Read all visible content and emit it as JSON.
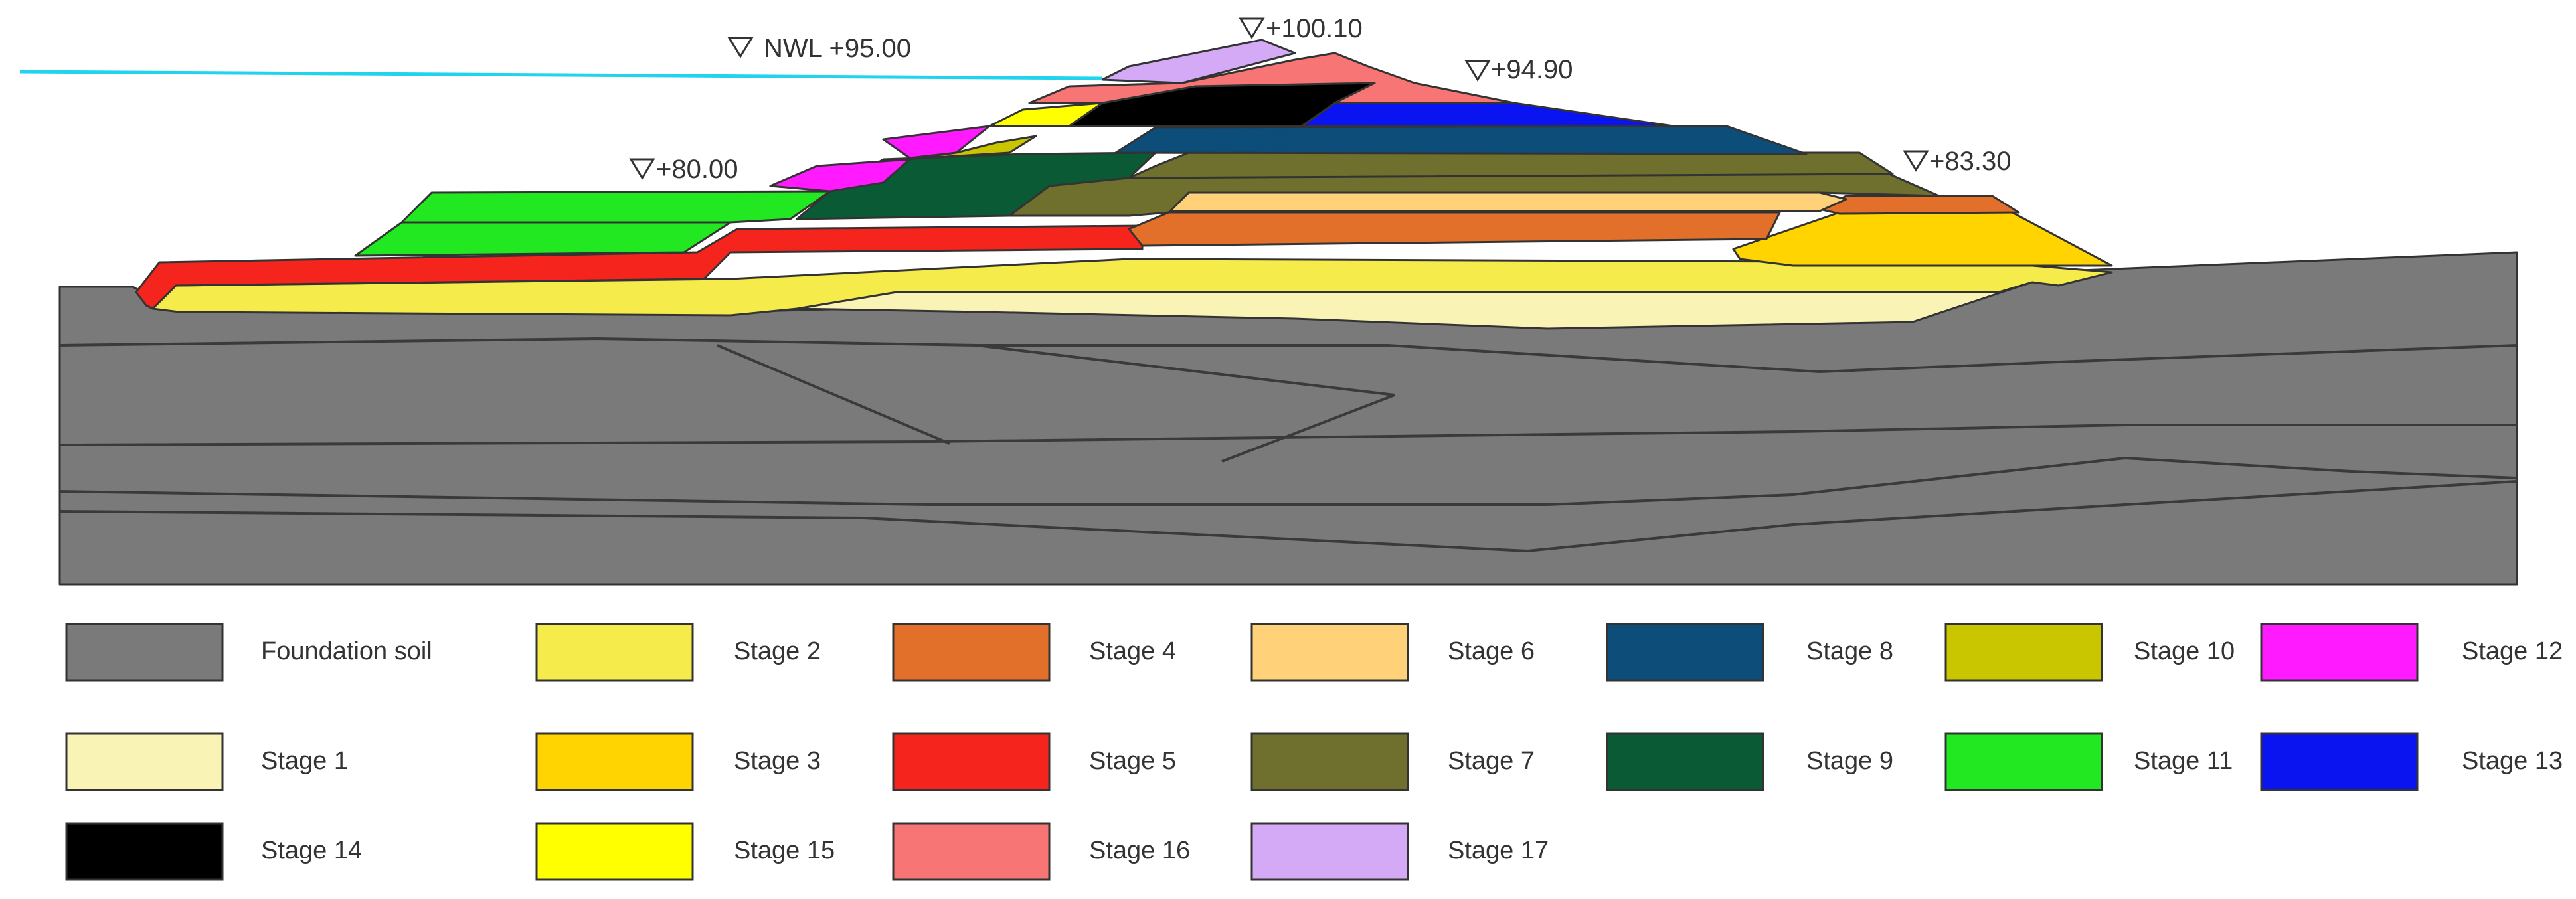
{
  "figure": {
    "elevation_markers": [
      {
        "key": "nwl",
        "label": "NWL +95.00"
      },
      {
        "key": "crest",
        "label": "+100.10"
      },
      {
        "key": "downstream_berm_top",
        "label": "+94.90"
      },
      {
        "key": "upstream_berm",
        "label": "+80.00"
      },
      {
        "key": "downstream_toe_berm",
        "label": "+83.30"
      }
    ],
    "water_color": "#22d3ee",
    "legend": [
      {
        "label": "Foundation soil",
        "color": "#7a7a7a"
      },
      {
        "label": "Stage 2",
        "color": "#f5ec4b"
      },
      {
        "label": "Stage 4",
        "color": "#e2702a"
      },
      {
        "label": "Stage 6",
        "color": "#ffd27a"
      },
      {
        "label": "Stage 8",
        "color": "#0d4d7a"
      },
      {
        "label": "Stage 10",
        "color": "#c9c600"
      },
      {
        "label": "Stage 12",
        "color": "#ff1aff"
      },
      {
        "label": "Stage 1",
        "color": "#f9f3b5"
      },
      {
        "label": "Stage 3",
        "color": "#ffd400"
      },
      {
        "label": "Stage 5",
        "color": "#f5241c"
      },
      {
        "label": "Stage 7",
        "color": "#6f6f2e"
      },
      {
        "label": "Stage 9",
        "color": "#0a5a35"
      },
      {
        "label": "Stage 11",
        "color": "#22e822"
      },
      {
        "label": "Stage 13",
        "color": "#0a14f0"
      },
      {
        "label": "Stage 14",
        "color": "#000000"
      },
      {
        "label": "Stage 15",
        "color": "#ffff00"
      },
      {
        "label": "Stage 16",
        "color": "#f77575"
      },
      {
        "label": "Stage 17",
        "color": "#d4a9f5"
      }
    ]
  }
}
